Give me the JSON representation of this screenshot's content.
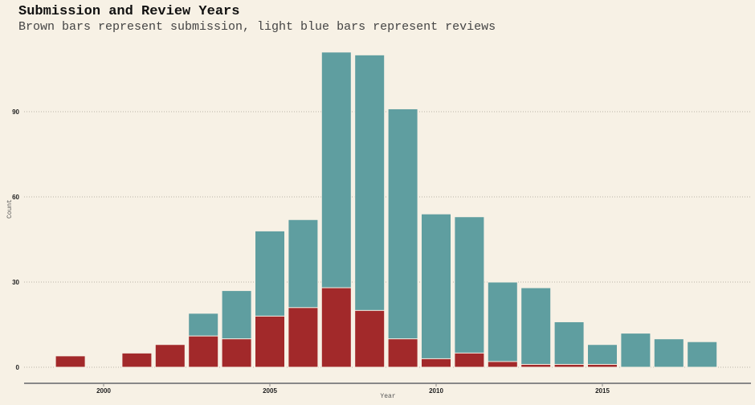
{
  "chart_data": {
    "type": "bar",
    "mode": "overlay",
    "title": "Submission and Review Years",
    "subtitle": "Brown bars represent submission, light blue bars represent reviews",
    "xlabel": "Year",
    "ylabel": "Count",
    "ylim": [
      0,
      112
    ],
    "xlim": [
      1997.6,
      2019.5
    ],
    "yticks": [
      0,
      30,
      60,
      90
    ],
    "xticks": [
      2000,
      2005,
      2010,
      2015
    ],
    "grid": "horizontal dotted",
    "series": [
      {
        "name": "reviews",
        "color": "#5f9ea0",
        "x": [
          2003,
          2004,
          2005,
          2006,
          2007,
          2008,
          2009,
          2010,
          2011,
          2012,
          2013,
          2014,
          2015,
          2016,
          2017,
          2018
        ],
        "values": [
          19,
          27,
          48,
          52,
          111,
          110,
          91,
          54,
          53,
          30,
          28,
          16,
          8,
          12,
          10,
          9
        ]
      },
      {
        "name": "submission",
        "color": "#a2292a",
        "x": [
          1999,
          2001,
          2002,
          2003,
          2004,
          2005,
          2006,
          2007,
          2008,
          2009,
          2010,
          2011,
          2012,
          2013,
          2014,
          2015
        ],
        "values": [
          4,
          5,
          8,
          11,
          10,
          18,
          21,
          28,
          20,
          10,
          3,
          5,
          2,
          1,
          1,
          1
        ]
      }
    ]
  }
}
